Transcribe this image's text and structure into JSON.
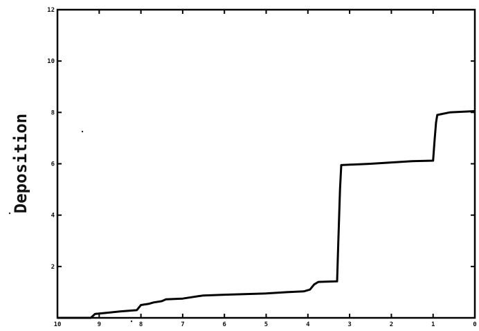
{
  "chart_data": {
    "type": "line",
    "title": "",
    "xlabel": "",
    "ylabel": "Deposition",
    "xlim": [
      10,
      0
    ],
    "ylim": [
      0,
      12
    ],
    "x_ticks": [
      10,
      9,
      8,
      7,
      6,
      5,
      4,
      3,
      2,
      1,
      0
    ],
    "x_tick_labels": [
      "10",
      "9",
      "8",
      "7",
      "6",
      "5",
      "4",
      "3",
      "2",
      "1",
      "0"
    ],
    "y_ticks": [
      2,
      4,
      6,
      8,
      10,
      12
    ],
    "y_tick_labels": [
      "2",
      "4",
      "6",
      "8",
      "10",
      "12"
    ],
    "grid": false,
    "series": [
      {
        "color": "#000000",
        "x": [
          9.2,
          9.1,
          8.8,
          8.5,
          8.1,
          8.0,
          7.8,
          7.7,
          7.5,
          7.4,
          7.0,
          6.8,
          6.6,
          6.5,
          6.0,
          5.0,
          4.5,
          4.1,
          3.95,
          3.85,
          3.75,
          3.3,
          3.27,
          3.23,
          3.2,
          2.5,
          2.0,
          1.5,
          1.0,
          0.97,
          0.93,
          0.9,
          0.6,
          0.0
        ],
        "y": [
          0.0,
          0.15,
          0.2,
          0.25,
          0.3,
          0.5,
          0.55,
          0.6,
          0.65,
          0.72,
          0.75,
          0.8,
          0.85,
          0.87,
          0.9,
          0.95,
          1.0,
          1.03,
          1.1,
          1.3,
          1.4,
          1.42,
          3.0,
          5.0,
          5.95,
          6.0,
          6.05,
          6.1,
          6.12,
          6.8,
          7.6,
          7.9,
          8.0,
          8.05
        ]
      }
    ]
  }
}
